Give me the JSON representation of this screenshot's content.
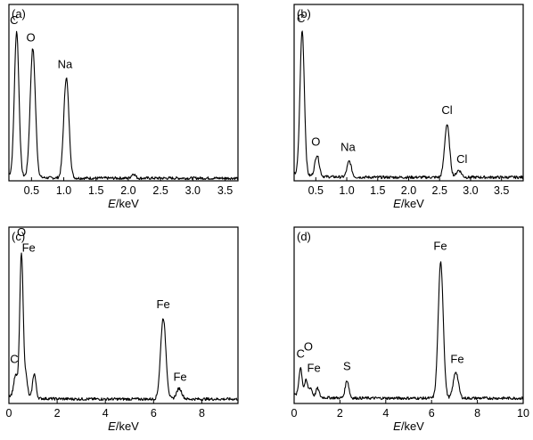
{
  "chart_data": [
    {
      "type": "line",
      "panel_label": "(a)",
      "xlabel_italic": "E",
      "xlabel_unit": "/keV",
      "xlim": [
        0.15,
        3.7
      ],
      "xticks": [
        0.5,
        1.0,
        1.5,
        2.0,
        2.5,
        3.0,
        3.5
      ],
      "xtick_labels": [
        "0.5",
        "1.0",
        "1.5",
        "2.0",
        "2.5",
        "3.0",
        "3.5"
      ],
      "ylim": [
        0,
        100
      ],
      "baseline": 1.5,
      "peaks": [
        {
          "x": 0.27,
          "height": 82,
          "width": 0.035
        },
        {
          "x": 0.52,
          "height": 73,
          "width": 0.04
        },
        {
          "x": 1.04,
          "height": 57,
          "width": 0.04
        },
        {
          "x": 2.08,
          "height": 2.5,
          "width": 0.03
        }
      ],
      "labels": [
        {
          "text": "C",
          "x": 0.23,
          "y": 89
        },
        {
          "text": "O",
          "x": 0.49,
          "y": 79
        },
        {
          "text": "Na",
          "x": 1.02,
          "y": 64
        }
      ]
    },
    {
      "type": "line",
      "panel_label": "(b)",
      "xlabel_italic": "E",
      "xlabel_unit": "/keV",
      "xlim": [
        0.15,
        3.85
      ],
      "xticks": [
        0.5,
        1.0,
        1.5,
        2.0,
        2.5,
        3.0,
        3.5
      ],
      "xtick_labels": [
        "0.5",
        "1.0",
        "1.5",
        "2.0",
        "2.5",
        "3.0",
        "3.5"
      ],
      "ylim": [
        0,
        100
      ],
      "baseline": 2,
      "peaks": [
        {
          "x": 0.28,
          "height": 82,
          "width": 0.035
        },
        {
          "x": 0.52,
          "height": 12,
          "width": 0.035
        },
        {
          "x": 1.04,
          "height": 9,
          "width": 0.035
        },
        {
          "x": 2.62,
          "height": 30,
          "width": 0.04
        },
        {
          "x": 2.81,
          "height": 4,
          "width": 0.04
        }
      ],
      "labels": [
        {
          "text": "C",
          "x": 0.26,
          "y": 90
        },
        {
          "text": "O",
          "x": 0.5,
          "y": 20
        },
        {
          "text": "Na",
          "x": 1.02,
          "y": 17
        },
        {
          "text": "Cl",
          "x": 2.62,
          "y": 38
        },
        {
          "text": "Cl",
          "x": 2.86,
          "y": 10
        }
      ]
    },
    {
      "type": "line",
      "panel_label": "(c)",
      "xlabel_italic": "E",
      "xlabel_unit": "/keV",
      "xlim": [
        0,
        9.5
      ],
      "xticks": [
        0,
        2,
        4,
        6,
        8
      ],
      "xtick_labels": [
        "0",
        "2",
        "4",
        "6",
        "8"
      ],
      "ylim": [
        0,
        100
      ],
      "baseline": 2.5,
      "peaks": [
        {
          "x": 0.28,
          "height": 12,
          "width": 0.08
        },
        {
          "x": 0.52,
          "height": 82,
          "width": 0.07
        },
        {
          "x": 0.7,
          "height": 12,
          "width": 0.07
        },
        {
          "x": 1.05,
          "height": 14,
          "width": 0.07
        },
        {
          "x": 6.4,
          "height": 46,
          "width": 0.11
        },
        {
          "x": 7.06,
          "height": 6,
          "width": 0.11
        }
      ],
      "labels": [
        {
          "text": "O",
          "x": 0.52,
          "y": 95
        },
        {
          "text": "Fe",
          "x": 0.82,
          "y": 86
        },
        {
          "text": "C",
          "x": 0.22,
          "y": 23
        },
        {
          "text": "Fe",
          "x": 6.4,
          "y": 54
        },
        {
          "text": "Fe",
          "x": 7.1,
          "y": 13
        }
      ]
    },
    {
      "type": "line",
      "panel_label": "(d)",
      "xlabel_italic": "E",
      "xlabel_unit": "/keV",
      "xlim": [
        0,
        10
      ],
      "xticks": [
        0,
        2,
        4,
        6,
        8,
        10
      ],
      "xtick_labels": [
        "0",
        "2",
        "4",
        "6",
        "8",
        "10"
      ],
      "ylim": [
        0,
        100
      ],
      "baseline": 3,
      "peaks": [
        {
          "x": 0.28,
          "height": 16,
          "width": 0.07
        },
        {
          "x": 0.52,
          "height": 9,
          "width": 0.07
        },
        {
          "x": 0.72,
          "height": 5,
          "width": 0.07
        },
        {
          "x": 1.02,
          "height": 5,
          "width": 0.07
        },
        {
          "x": 2.31,
          "height": 10,
          "width": 0.08
        },
        {
          "x": 6.4,
          "height": 77,
          "width": 0.11
        },
        {
          "x": 7.06,
          "height": 15,
          "width": 0.11
        }
      ],
      "labels": [
        {
          "text": "C",
          "x": 0.28,
          "y": 26
        },
        {
          "text": "O",
          "x": 0.62,
          "y": 30
        },
        {
          "text": "Fe",
          "x": 0.86,
          "y": 18
        },
        {
          "text": "S",
          "x": 2.31,
          "y": 19
        },
        {
          "text": "Fe",
          "x": 6.38,
          "y": 87
        },
        {
          "text": "Fe",
          "x": 7.12,
          "y": 23
        }
      ]
    }
  ]
}
